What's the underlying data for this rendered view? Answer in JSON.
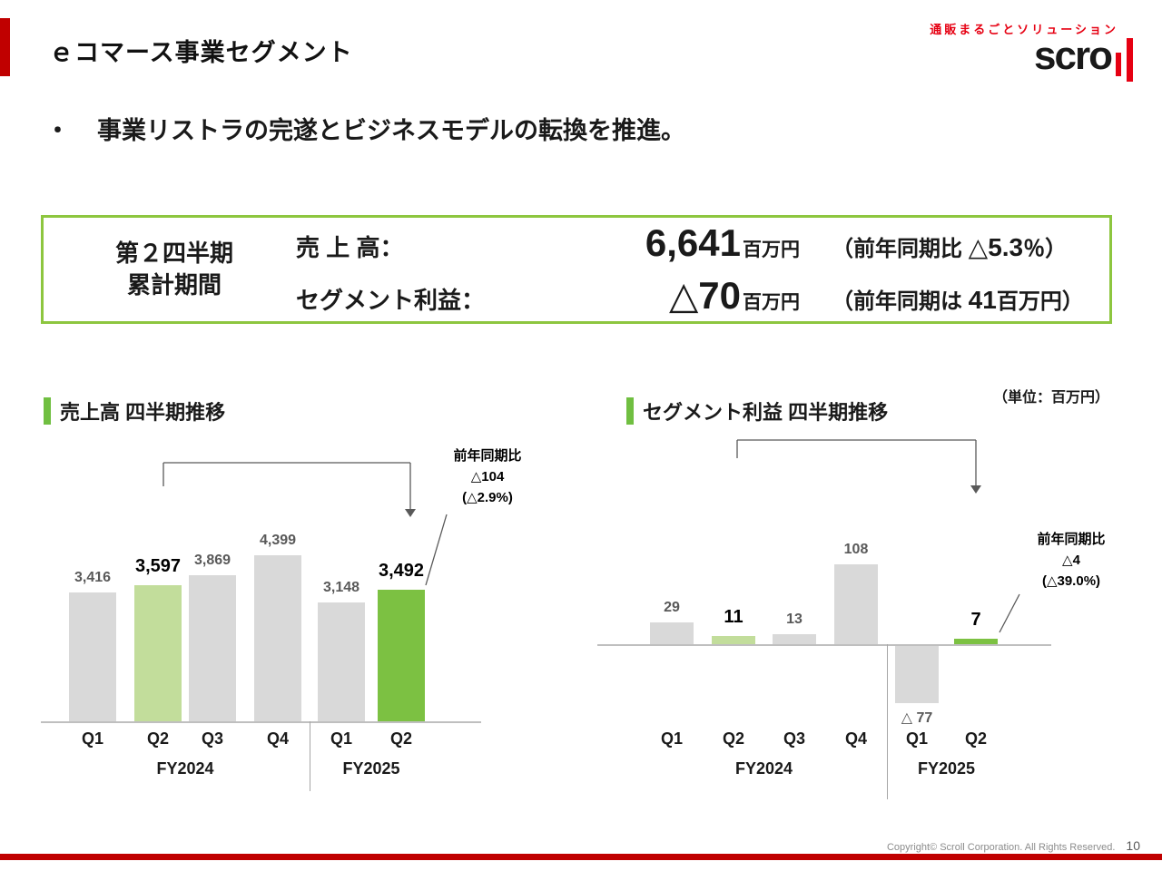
{
  "header": {
    "title": "ｅコマース事業セグメント",
    "tagline": "通販まるごとソリューション",
    "logo_text": "scro"
  },
  "bullet": {
    "marker": "・",
    "text": "事業リストラの完遂とビジネスモデルの転換を推進。"
  },
  "summary": {
    "period_line1": "第２四半期",
    "period_line2": "累計期間",
    "rows": [
      {
        "label": "売 上 高：",
        "value": "6,641",
        "unit": "百万円",
        "note_prefix": "（前年同期比 ",
        "note_big": "△5.3",
        "note_suffix": "％）"
      },
      {
        "label": "セグメント利益：",
        "value": "△70",
        "unit": "百万円",
        "note_prefix": "（前年同期は ",
        "note_big": "41",
        "note_suffix": "百万円）"
      }
    ]
  },
  "charts_unit_note": "（単位：百万円）",
  "chart_data": [
    {
      "type": "bar",
      "title": "売上高 四半期推移",
      "categories": [
        "Q1",
        "Q2",
        "Q3",
        "Q4",
        "Q1",
        "Q2"
      ],
      "values": [
        3416,
        3597,
        3869,
        4399,
        3148,
        3492
      ],
      "value_labels": [
        "3,416",
        "3,597",
        "3,869",
        "4,399",
        "3,148",
        "3,492"
      ],
      "groups": [
        {
          "label": "FY2024",
          "span": [
            0,
            3
          ]
        },
        {
          "label": "FY2025",
          "span": [
            4,
            5
          ]
        }
      ],
      "highlight_light_index": 1,
      "highlight_index": 5,
      "annotation": {
        "lines": [
          "前年同期比",
          "△104",
          "(△2.9%)"
        ]
      },
      "xlabel": "",
      "ylabel": "",
      "unit": "百万円",
      "ylim": [
        0,
        4700
      ]
    },
    {
      "type": "bar",
      "title": "セグメント利益 四半期推移",
      "categories": [
        "Q1",
        "Q2",
        "Q3",
        "Q4",
        "Q1",
        "Q2"
      ],
      "values": [
        29,
        11,
        13,
        108,
        -77,
        7
      ],
      "value_labels": [
        "29",
        "11",
        "13",
        "108",
        "△ 77",
        "7"
      ],
      "groups": [
        {
          "label": "FY2024",
          "span": [
            0,
            3
          ]
        },
        {
          "label": "FY2025",
          "span": [
            4,
            5
          ]
        }
      ],
      "highlight_light_index": 1,
      "highlight_index": 5,
      "annotation": {
        "lines": [
          "前年同期比",
          "△4",
          "(△39.0%)"
        ]
      },
      "xlabel": "",
      "ylabel": "",
      "unit": "百万円",
      "ylim": [
        -110,
        130
      ]
    }
  ],
  "footer": {
    "copyright": "Copyright© Scroll Corporation. All Rights Reserved.",
    "page_number": "10"
  },
  "colors": {
    "accent_red": "#c00000",
    "logo_red": "#e60012",
    "bar_gray": "#d9d9d9",
    "bar_light_green": "#c2dd9b",
    "bar_green": "#7cc142",
    "box_border_green": "#8dc63f",
    "line_gray": "#595959"
  }
}
